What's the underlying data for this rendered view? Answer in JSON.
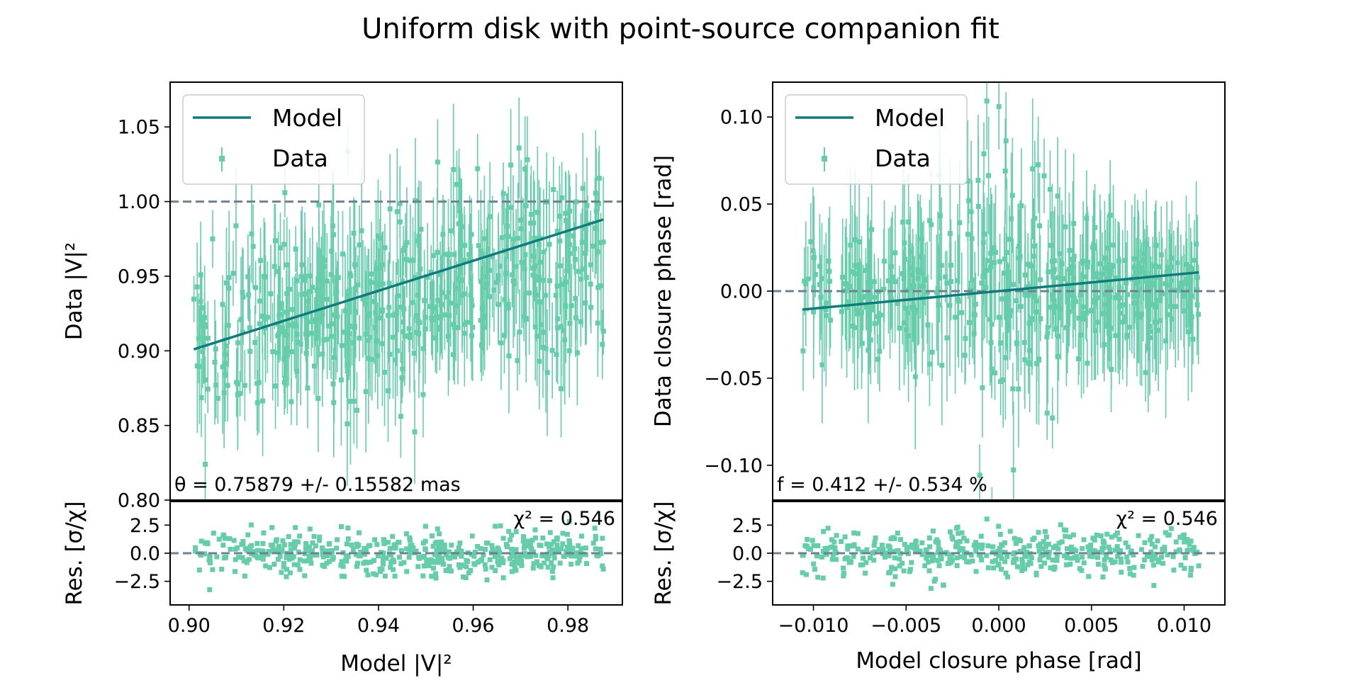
{
  "figure": {
    "title": "Uniform disk with point-source companion fit"
  },
  "colors": {
    "data": "#66cdaa",
    "model": "#0f7b7b",
    "reference": "#708090",
    "axes": "#000000",
    "background": "#ffffff"
  },
  "chart_data": [
    {
      "id": "vis2-main",
      "type": "scatter",
      "title": "",
      "xlabel": "",
      "ylabel": "Data |V|²",
      "xlim": [
        0.896,
        0.9915
      ],
      "ylim": [
        0.8,
        1.08
      ],
      "xticks": [
        0.9,
        0.92,
        0.94,
        0.96,
        0.98
      ],
      "yticks": [
        0.8,
        0.85,
        0.9,
        0.95,
        1.0,
        1.05
      ],
      "ytick_labels": [
        "0.80",
        "0.85",
        "0.90",
        "0.95",
        "1.00",
        "1.05"
      ],
      "legend": {
        "placement": "top-left",
        "entries": [
          {
            "label": "Model",
            "kind": "line"
          },
          {
            "label": "Data",
            "kind": "errorbar"
          }
        ]
      },
      "reference_line": {
        "y": 1.0,
        "style": "dashed"
      },
      "model_line": {
        "x": [
          0.901,
          0.9875
        ],
        "y": [
          0.901,
          0.988
        ]
      },
      "annotation": "θ = 0.75879 +/- 0.15582 mas",
      "series": [
        {
          "name": "Data",
          "kind": "errorbar-points",
          "x_range": [
            0.901,
            0.9875
          ],
          "n_points": 520,
          "trend": {
            "y_at_start": 0.905,
            "y_at_end": 0.968,
            "scatter": 0.03,
            "err_min": 0.015,
            "err_max": 0.045
          }
        }
      ]
    },
    {
      "id": "vis2-residuals",
      "type": "scatter",
      "xlabel": "Model |V|²",
      "ylabel": "Res. [σ/χ]",
      "xlim": [
        0.896,
        0.9915
      ],
      "ylim": [
        -4.6,
        4.6
      ],
      "xticks": [
        0.9,
        0.92,
        0.94,
        0.96,
        0.98
      ],
      "xtick_labels": [
        "0.90",
        "0.92",
        "0.94",
        "0.96",
        "0.98"
      ],
      "yticks": [
        -2.5,
        0.0,
        2.5
      ],
      "ytick_labels": [
        "−2.5",
        "0.0",
        "2.5"
      ],
      "reference_line": {
        "y": 0.0,
        "style": "dashed"
      },
      "annotation": "χ² = 0.546",
      "series": [
        {
          "name": "Residuals",
          "kind": "points",
          "x_range": [
            0.901,
            0.9875
          ],
          "n_points": 520,
          "trend": {
            "mean": 0.0,
            "scatter": 1.0
          },
          "min_value": -4.2,
          "max_value": 3.0
        }
      ]
    },
    {
      "id": "cp-main",
      "type": "scatter",
      "title": "",
      "xlabel": "",
      "ylabel": "Data closure phase [rad]",
      "xlim": [
        -0.0122,
        0.0122
      ],
      "ylim": [
        -0.12,
        0.12
      ],
      "xticks": [
        -0.01,
        -0.005,
        0.0,
        0.005,
        0.01
      ],
      "yticks": [
        -0.1,
        -0.05,
        0.0,
        0.05,
        0.1
      ],
      "ytick_labels": [
        "−0.10",
        "−0.05",
        "0.00",
        "0.05",
        "0.10"
      ],
      "legend": {
        "placement": "top-left",
        "entries": [
          {
            "label": "Model",
            "kind": "line"
          },
          {
            "label": "Data",
            "kind": "errorbar"
          }
        ]
      },
      "reference_line": {
        "y": 0.0,
        "style": "dashed"
      },
      "model_line": {
        "x": [
          -0.0106,
          0.0108
        ],
        "y": [
          -0.0106,
          0.0108
        ]
      },
      "annotation": "f = 0.412 +/- 0.534 %",
      "series": [
        {
          "name": "Data",
          "kind": "errorbar-points",
          "x_range": [
            -0.0106,
            0.0108
          ],
          "n_points": 460,
          "trend": {
            "scatter": 0.025,
            "err_min": 0.012,
            "err_max": 0.045
          }
        }
      ]
    },
    {
      "id": "cp-residuals",
      "type": "scatter",
      "xlabel": "Model closure phase [rad]",
      "ylabel": "Res. [σ/χ]",
      "xlim": [
        -0.0122,
        0.0122
      ],
      "ylim": [
        -4.6,
        4.6
      ],
      "xticks": [
        -0.01,
        -0.005,
        0.0,
        0.005,
        0.01
      ],
      "xtick_labels": [
        "−0.010",
        "−0.005",
        "0.000",
        "0.005",
        "0.010"
      ],
      "yticks": [
        -2.5,
        0.0,
        2.5
      ],
      "ytick_labels": [
        "−2.5",
        "0.0",
        "2.5"
      ],
      "reference_line": {
        "y": 0.0,
        "style": "dashed"
      },
      "annotation": "χ² = 0.546",
      "series": [
        {
          "name": "Residuals",
          "kind": "points",
          "x_range": [
            -0.0106,
            0.0108
          ],
          "n_points": 460,
          "trend": {
            "mean": 0.0,
            "scatter": 1.0
          },
          "min_value": -3.5,
          "max_value": 4.3
        }
      ]
    }
  ]
}
